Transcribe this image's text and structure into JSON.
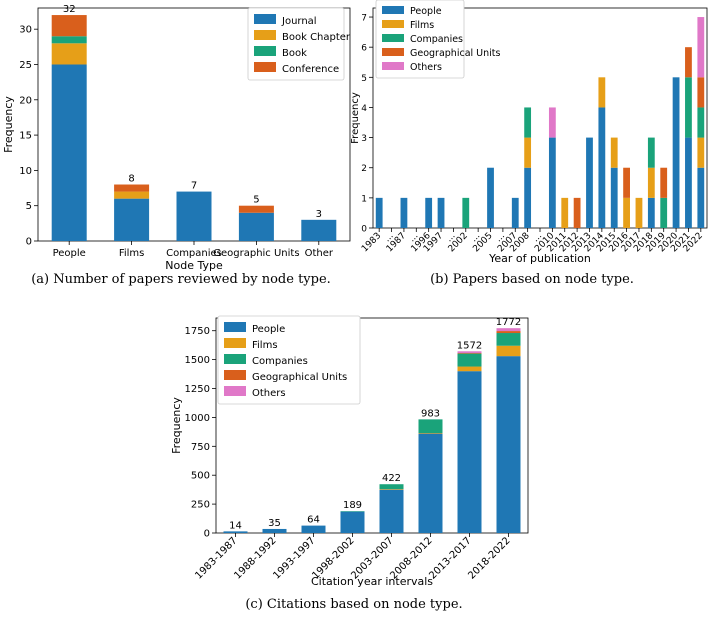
{
  "colors": {
    "blue": "#1f77b4",
    "orange": "#e69f18",
    "green": "#1aa37a",
    "red": "#d95f1c",
    "pink": "#e078c8"
  },
  "captions": {
    "a": "(a) Number of papers reviewed by node type.",
    "b": "(b) Papers based on node type.",
    "c": "(c) Citations based on node type."
  },
  "chart_data": [
    {
      "id": "a",
      "type": "bar",
      "stacked": true,
      "title": "",
      "xlabel": "Node Type",
      "ylabel": "Frequency",
      "ylim": [
        0,
        33
      ],
      "yticks": [
        0,
        5,
        10,
        15,
        20,
        25,
        30
      ],
      "legend_position": "top-right",
      "categories": [
        "People",
        "Films",
        "Companies",
        "Geographic Units",
        "Other"
      ],
      "series": [
        {
          "name": "Journal",
          "color": "#1f77b4",
          "values": [
            25,
            6,
            7,
            4,
            3
          ]
        },
        {
          "name": "Book Chapter",
          "color": "#e69f18",
          "values": [
            3,
            1,
            0,
            0,
            0
          ]
        },
        {
          "name": "Book",
          "color": "#1aa37a",
          "values": [
            1,
            0,
            0,
            0,
            0
          ]
        },
        {
          "name": "Conference",
          "color": "#d95f1c",
          "values": [
            3,
            1,
            0,
            1,
            0
          ]
        }
      ],
      "totals": [
        "32",
        "8",
        "7",
        "5",
        "3"
      ]
    },
    {
      "id": "b",
      "type": "bar",
      "stacked": true,
      "title": "",
      "xlabel": "Year of publication",
      "ylabel": "Frequency",
      "ylim": [
        0,
        7.3
      ],
      "yticks": [
        0,
        1,
        2,
        3,
        4,
        5,
        6,
        7
      ],
      "legend_position": "top-left",
      "categories": [
        "1983",
        "...",
        "1987",
        "...",
        "1996",
        "1997",
        "...",
        "2002",
        "...",
        "2005",
        "...",
        "2007",
        "2008",
        "...",
        "2010",
        "2011",
        "2012",
        "2013",
        "2014",
        "2015",
        "2016",
        "2017",
        "2018",
        "2019",
        "2020",
        "2021",
        "2022"
      ],
      "series": [
        {
          "name": "People",
          "color": "#1f77b4",
          "values": [
            1,
            0,
            1,
            0,
            1,
            1,
            0,
            0,
            0,
            2,
            0,
            1,
            2,
            0,
            3,
            0,
            0,
            3,
            4,
            2,
            0,
            0,
            1,
            0,
            5,
            3,
            2
          ]
        },
        {
          "name": "Films",
          "color": "#e69f18",
          "values": [
            0,
            0,
            0,
            0,
            0,
            0,
            0,
            0,
            0,
            0,
            0,
            0,
            1,
            0,
            0,
            1,
            0,
            0,
            1,
            1,
            1,
            1,
            1,
            0,
            0,
            0,
            1
          ]
        },
        {
          "name": "Companies",
          "color": "#1aa37a",
          "values": [
            0,
            0,
            0,
            0,
            0,
            0,
            0,
            1,
            0,
            0,
            0,
            0,
            1,
            0,
            0,
            0,
            0,
            0,
            0,
            0,
            0,
            0,
            1,
            1,
            0,
            2,
            1
          ]
        },
        {
          "name": "Geographical Units",
          "color": "#d95f1c",
          "values": [
            0,
            0,
            0,
            0,
            0,
            0,
            0,
            0,
            0,
            0,
            0,
            0,
            0,
            0,
            0,
            0,
            1,
            0,
            0,
            0,
            1,
            0,
            0,
            1,
            0,
            1,
            1
          ]
        },
        {
          "name": "Others",
          "color": "#e078c8",
          "values": [
            0,
            0,
            0,
            0,
            0,
            0,
            0,
            0,
            0,
            0,
            0,
            0,
            0,
            0,
            1,
            0,
            0,
            0,
            0,
            0,
            0,
            0,
            0,
            0,
            0,
            0,
            2
          ]
        }
      ]
    },
    {
      "id": "c",
      "type": "bar",
      "stacked": true,
      "title": "",
      "xlabel": "Citation year intervals",
      "ylabel": "Frequency",
      "ylim": [
        0,
        1860
      ],
      "yticks": [
        0,
        250,
        500,
        750,
        1000,
        1250,
        1500,
        1750
      ],
      "legend_position": "top-left",
      "categories": [
        "1983-1987",
        "1988-1992",
        "1993-1997",
        "1998-2002",
        "2003-2007",
        "2008-2012",
        "2013-2017",
        "2018-2022"
      ],
      "series": [
        {
          "name": "People",
          "color": "#1f77b4",
          "values": [
            14,
            35,
            64,
            185,
            375,
            860,
            1400,
            1530
          ]
        },
        {
          "name": "Films",
          "color": "#e69f18",
          "values": [
            0,
            0,
            0,
            0,
            5,
            5,
            40,
            90
          ]
        },
        {
          "name": "Companies",
          "color": "#1aa37a",
          "values": [
            0,
            0,
            0,
            4,
            42,
            118,
            112,
            110
          ]
        },
        {
          "name": "Geographical Units",
          "color": "#d95f1c",
          "values": [
            0,
            0,
            0,
            0,
            0,
            0,
            5,
            17
          ]
        },
        {
          "name": "Others",
          "color": "#e078c8",
          "values": [
            0,
            0,
            0,
            0,
            0,
            0,
            15,
            25
          ]
        }
      ],
      "totals": [
        "14",
        "35",
        "64",
        "189",
        "422",
        "983",
        "1572",
        "1772"
      ]
    }
  ]
}
